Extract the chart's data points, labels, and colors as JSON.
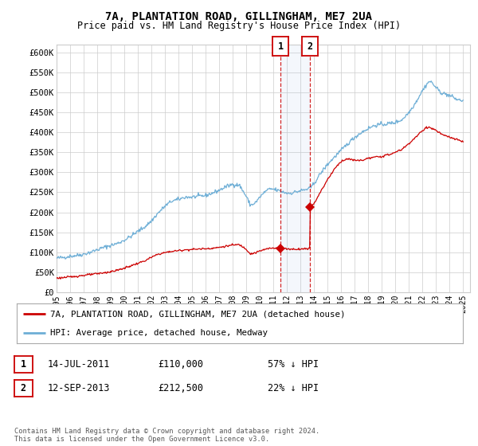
{
  "title_line1": "7A, PLANTATION ROAD, GILLINGHAM, ME7 2UA",
  "title_line2": "Price paid vs. HM Land Registry's House Price Index (HPI)",
  "legend_line1": "7A, PLANTATION ROAD, GILLINGHAM, ME7 2UA (detached house)",
  "legend_line2": "HPI: Average price, detached house, Medway",
  "annotation1_label": "1",
  "annotation1_date": "14-JUL-2011",
  "annotation1_price": "£110,000",
  "annotation1_hpi": "57% ↓ HPI",
  "annotation2_label": "2",
  "annotation2_date": "12-SEP-2013",
  "annotation2_price": "£212,500",
  "annotation2_hpi": "22% ↓ HPI",
  "sale1_date_num": 2011.54,
  "sale1_price": 110000,
  "sale2_date_num": 2013.71,
  "sale2_price": 212500,
  "hpi_color": "#6daed6",
  "price_color": "#cc0000",
  "background_color": "#ffffff",
  "grid_color": "#cccccc",
  "footer": "Contains HM Land Registry data © Crown copyright and database right 2024.\nThis data is licensed under the Open Government Licence v3.0.",
  "ylim": [
    0,
    620000
  ],
  "yticks": [
    0,
    50000,
    100000,
    150000,
    200000,
    250000,
    300000,
    350000,
    400000,
    450000,
    500000,
    550000,
    600000
  ],
  "xmin": 1995.0,
  "xmax": 2025.5
}
